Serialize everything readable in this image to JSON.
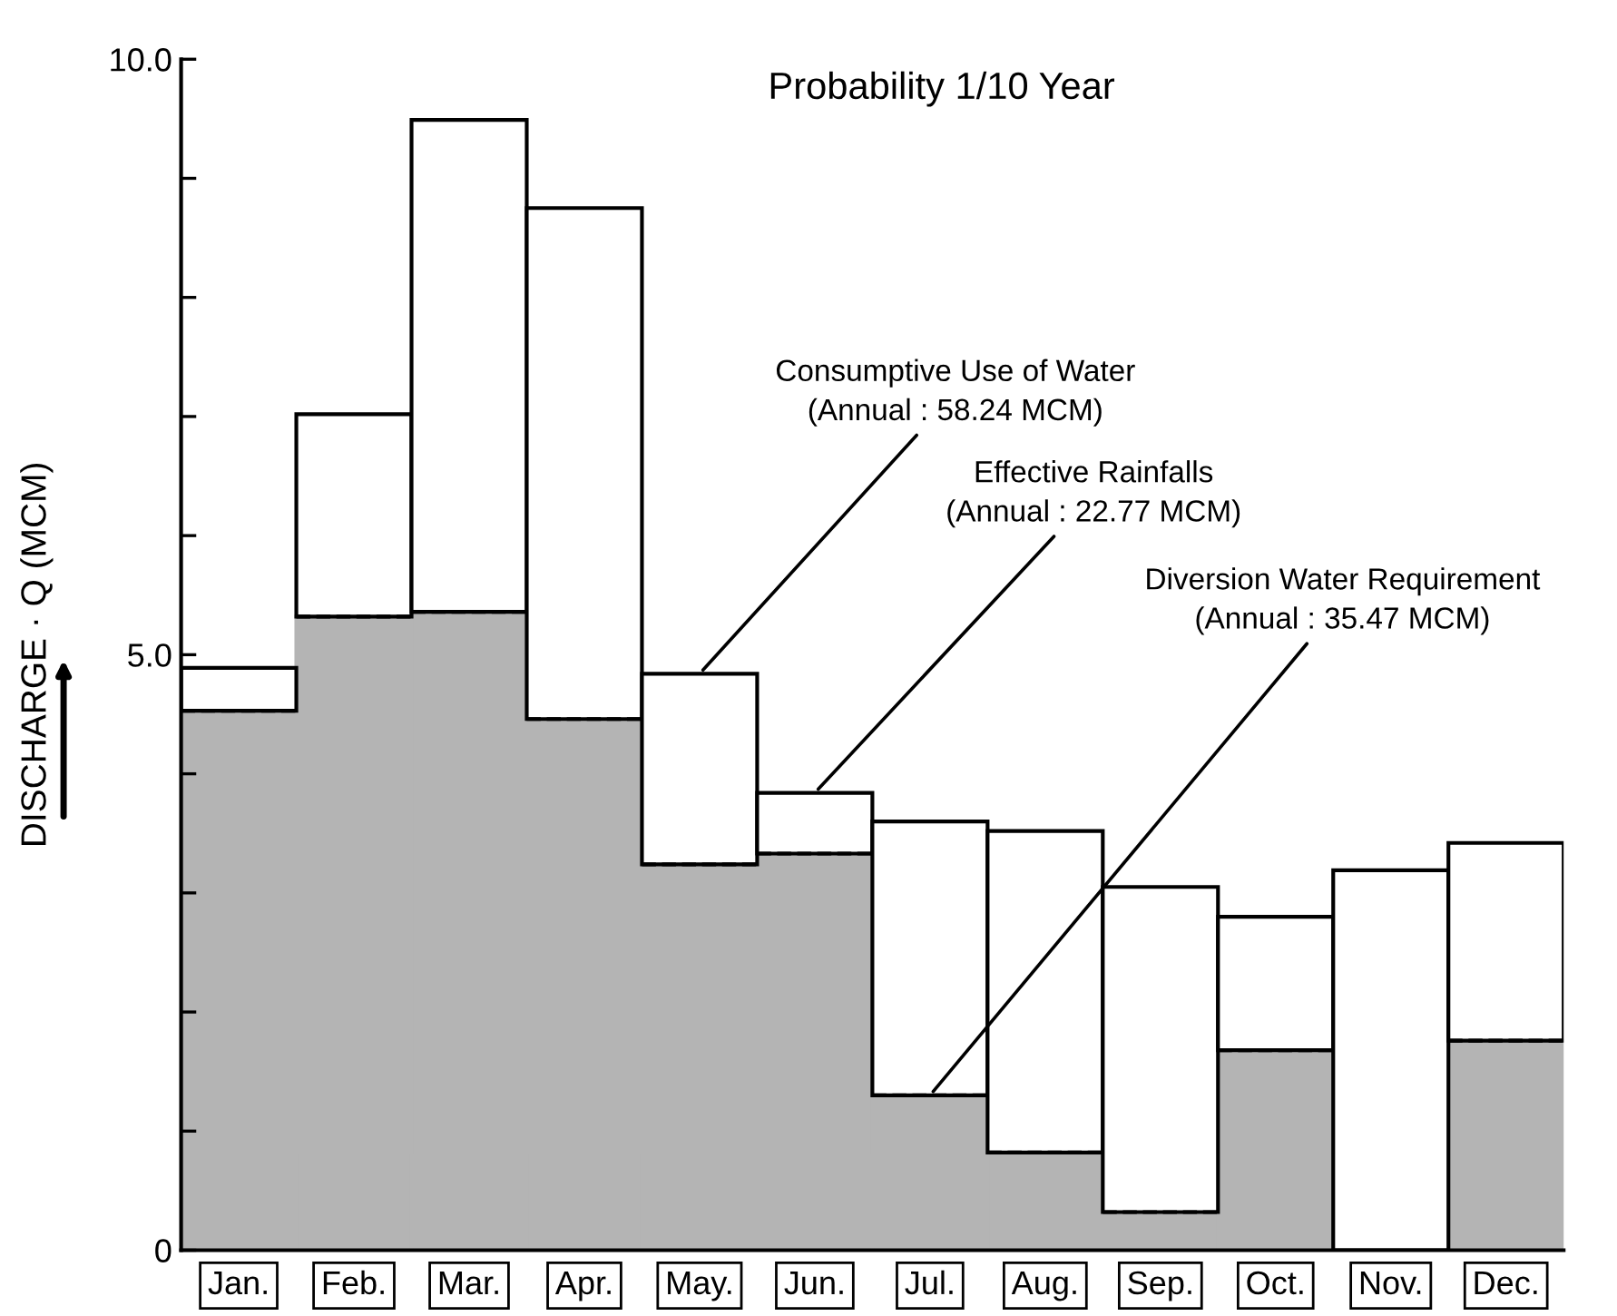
{
  "chart_data": {
    "type": "bar",
    "title": "Probability 1/10 Year",
    "ylabel": "DISCHARGE · Q (MCM)",
    "categories": [
      "Jan.",
      "Feb.",
      "Mar.",
      "Apr.",
      "May.",
      "Jun.",
      "Jul.",
      "Aug.",
      "Sep.",
      "Oct.",
      "Nov.",
      "Dec."
    ],
    "stacked": true,
    "series": [
      {
        "color": "#b4b4b4",
        "values": [
          4.53,
          5.32,
          5.36,
          4.46,
          3.24,
          3.33,
          1.3,
          0.82,
          0.32,
          1.68,
          0,
          1.76
        ]
      },
      {
        "color": "#ffffff",
        "values": [
          0.36,
          1.7,
          4.13,
          4.29,
          1.6,
          0.51,
          2.3,
          2.7,
          2.73,
          1.12,
          3.19,
          1.66
        ]
      }
    ],
    "ylim": [
      0,
      10
    ],
    "yticks": [
      {
        "value": 0,
        "label": "0"
      },
      {
        "value": 1,
        "label": null
      },
      {
        "value": 2,
        "label": null
      },
      {
        "value": 3,
        "label": null
      },
      {
        "value": 4,
        "label": null
      },
      {
        "value": 5,
        "label": "5.0"
      },
      {
        "value": 6,
        "label": null
      },
      {
        "value": 7,
        "label": null
      },
      {
        "value": 8,
        "label": null
      },
      {
        "value": 9,
        "label": null
      },
      {
        "value": 10,
        "label": "10.0"
      }
    ],
    "annotations": [
      {
        "text": "Consumptive Use of Water\n(Annual : 58.24 MCM)",
        "x": "May.",
        "y": 4.84
      },
      {
        "text": "Effective Rainfalls\n(Annual : 22.77 MCM)",
        "x": "Jun.",
        "y": 3.84
      },
      {
        "text": "Diversion Water Requirement\n(Annual : 35.47 MCM)",
        "x": "Jul.",
        "y": 1.3
      }
    ],
    "grid": false,
    "legend": false
  }
}
